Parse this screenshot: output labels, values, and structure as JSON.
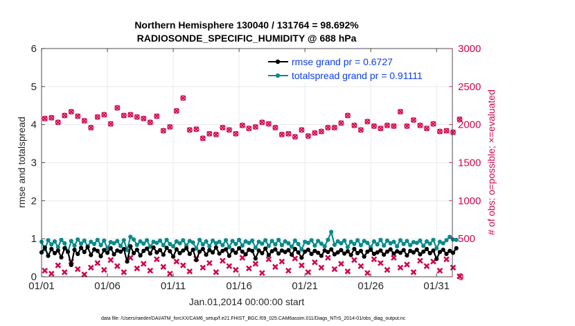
{
  "chart_data": {
    "type": "line",
    "title": "Northern Hemisphere 130040 / 131764 = 98.692%",
    "subtitle": "RADIOSONDE_SPECIFIC_HUMIDITY @ 688 hPa",
    "xlabel": "Jan.01,2014 00:00:00 start",
    "ylabel": "rmse and totalspread",
    "ylabel_right": "# of obs: o=possible; ×=evaluated",
    "xlim": [
      0,
      31.2
    ],
    "ylim": [
      0,
      6
    ],
    "ylim_right": [
      0,
      3000
    ],
    "x_ticks": [
      0,
      5,
      10,
      15,
      20,
      25,
      30
    ],
    "x_tick_labels": [
      "01/01",
      "01/06",
      "01/11",
      "01/16",
      "01/21",
      "01/26",
      "01/31"
    ],
    "y_ticks": [
      0,
      1,
      2,
      3,
      4,
      5,
      6
    ],
    "y_tick_labels": [
      "0",
      "1",
      "2",
      "3",
      "4",
      "5",
      "6"
    ],
    "y_right_ticks": [
      0,
      500,
      1000,
      1500,
      2000,
      2500,
      3000
    ],
    "y_right_tick_labels": [
      "0",
      "500",
      "1000",
      "1500",
      "2000",
      "2500",
      "3000"
    ],
    "grid": true,
    "legend_position": "top-right",
    "footer": "data file: /Users/raeder/DAI/ATM_forcXX/CAM6_setup/f.e21.FHIST_BGC.f09_025.CAM6assim.011/Diags_NTrS_2014-01/obs_diag_output.nc",
    "series": [
      {
        "name": "rmse grand pr = 0.6727",
        "axis": "left",
        "color": "#000000",
        "marker": "circle",
        "x_step": 0.25,
        "values": [
          0.64,
          0.77,
          0.55,
          0.73,
          0.62,
          0.69,
          0.51,
          0.75,
          0.66,
          0.31,
          0.71,
          0.6,
          0.76,
          0.65,
          0.78,
          0.57,
          0.72,
          0.68,
          0.54,
          0.7,
          0.63,
          0.75,
          0.59,
          0.69,
          0.66,
          0.73,
          0.4,
          0.8,
          0.62,
          0.71,
          0.56,
          0.68,
          0.74,
          0.61,
          0.77,
          0.64,
          0.7,
          0.58,
          0.76,
          0.67,
          0.53,
          0.72,
          0.62,
          0.69,
          0.75,
          0.6,
          0.71,
          0.44,
          0.66,
          0.73,
          0.58,
          0.7,
          0.64,
          0.77,
          0.61,
          0.68,
          0.72,
          0.55,
          0.7,
          0.63,
          0.75,
          0.66,
          0.59,
          0.71,
          0.68,
          0.48,
          0.69,
          0.62,
          0.74,
          0.57,
          0.67,
          0.72,
          0.61,
          0.69,
          0.65,
          0.7,
          0.58,
          0.73,
          0.64,
          0.5,
          0.66,
          0.71,
          0.6,
          0.68,
          0.63,
          0.55,
          0.69,
          0.65,
          0.72,
          0.59,
          0.64,
          0.7,
          0.61,
          0.67,
          0.57,
          0.73,
          0.62,
          0.68,
          0.53,
          0.66,
          0.71,
          0.6,
          0.64,
          0.69,
          0.58,
          0.66,
          0.72,
          0.61,
          0.67,
          0.63,
          0.7,
          0.56,
          0.68,
          0.64,
          0.71,
          0.59,
          0.66,
          0.73,
          0.62,
          0.69,
          0.47,
          0.65,
          0.71,
          0.6,
          0.68,
          0.63,
          0.75
        ]
      },
      {
        "name": "totalspread grand pr = 0.91111",
        "axis": "left",
        "color": "#0a8a8a",
        "marker": "circle",
        "x_step": 0.25,
        "values": [
          0.92,
          0.72,
          0.96,
          0.85,
          0.93,
          0.78,
          0.97,
          0.88,
          0.65,
          0.94,
          0.82,
          0.98,
          0.87,
          0.95,
          0.8,
          0.92,
          0.86,
          0.97,
          0.83,
          0.95,
          0.75,
          0.91,
          0.88,
          0.94,
          0.81,
          0.96,
          0.7,
          1.05,
          0.98,
          0.84,
          0.93,
          0.87,
          0.96,
          0.79,
          0.92,
          0.89,
          0.95,
          0.83,
          0.97,
          0.86,
          0.8,
          0.93,
          0.88,
          0.96,
          0.82,
          0.94,
          0.9,
          0.74,
          0.97,
          0.85,
          0.93,
          0.8,
          0.95,
          0.88,
          0.92,
          0.83,
          0.96,
          0.78,
          0.94,
          0.86,
          0.97,
          0.82,
          0.93,
          0.89,
          0.95,
          0.76,
          0.92,
          0.87,
          0.96,
          0.81,
          0.94,
          0.85,
          0.97,
          0.83,
          0.93,
          0.88,
          0.79,
          0.95,
          0.86,
          0.72,
          0.92,
          0.89,
          0.96,
          0.82,
          0.94,
          0.87,
          0.8,
          0.97,
          1.18,
          0.84,
          0.93,
          0.88,
          0.95,
          0.78,
          0.92,
          0.86,
          0.96,
          0.83,
          0.94,
          0.89,
          0.77,
          0.93,
          0.85,
          0.97,
          0.82,
          0.95,
          0.88,
          0.92,
          0.8,
          0.96,
          0.86,
          0.94,
          0.83,
          0.91,
          0.89,
          0.95,
          0.81,
          0.93,
          0.87,
          0.97,
          0.75,
          0.92,
          0.88,
          0.96,
          1.05,
          0.98,
          0.97
        ]
      },
      {
        "name": "possible",
        "axis": "right",
        "color": "#d1054f",
        "marker": "o",
        "x_step": 0.5,
        "values": [
          2080,
          2090,
          2030,
          2120,
          2170,
          2110,
          2050,
          1960,
          2100,
          2130,
          2010,
          2220,
          2120,
          2130,
          2100,
          2080,
          2030,
          2110,
          1920,
          1970,
          2180,
          2350,
          1930,
          1940,
          1820,
          1880,
          1870,
          1960,
          1930,
          1880,
          1990,
          1950,
          1970,
          2030,
          2010,
          1960,
          1870,
          1880,
          1840,
          1930,
          1850,
          1890,
          1910,
          1960,
          1960,
          2020,
          2120,
          1990,
          1930,
          2040,
          1980,
          1950,
          1990,
          1980,
          2170,
          1980,
          2060,
          1990,
          1950,
          2010,
          1910,
          1920,
          1900,
          2070
        ]
      },
      {
        "name": "evaluated",
        "axis": "right",
        "color": "#d1054f",
        "marker": "x",
        "x_step": 0.5,
        "values": [
          80,
          40,
          150,
          60,
          200,
          100,
          30,
          120,
          180,
          90,
          220,
          140,
          60,
          250,
          110,
          170,
          80,
          230,
          130,
          40,
          200,
          150,
          70,
          240,
          120,
          180,
          60,
          210,
          140,
          90,
          250,
          110,
          170,
          50,
          230,
          130,
          200,
          80,
          240,
          150,
          60,
          190,
          120,
          250,
          100,
          170,
          70,
          220,
          140,
          50,
          230,
          180,
          90,
          250,
          120,
          160,
          60,
          210,
          140,
          200,
          80,
          230,
          120,
          5
        ]
      }
    ]
  }
}
